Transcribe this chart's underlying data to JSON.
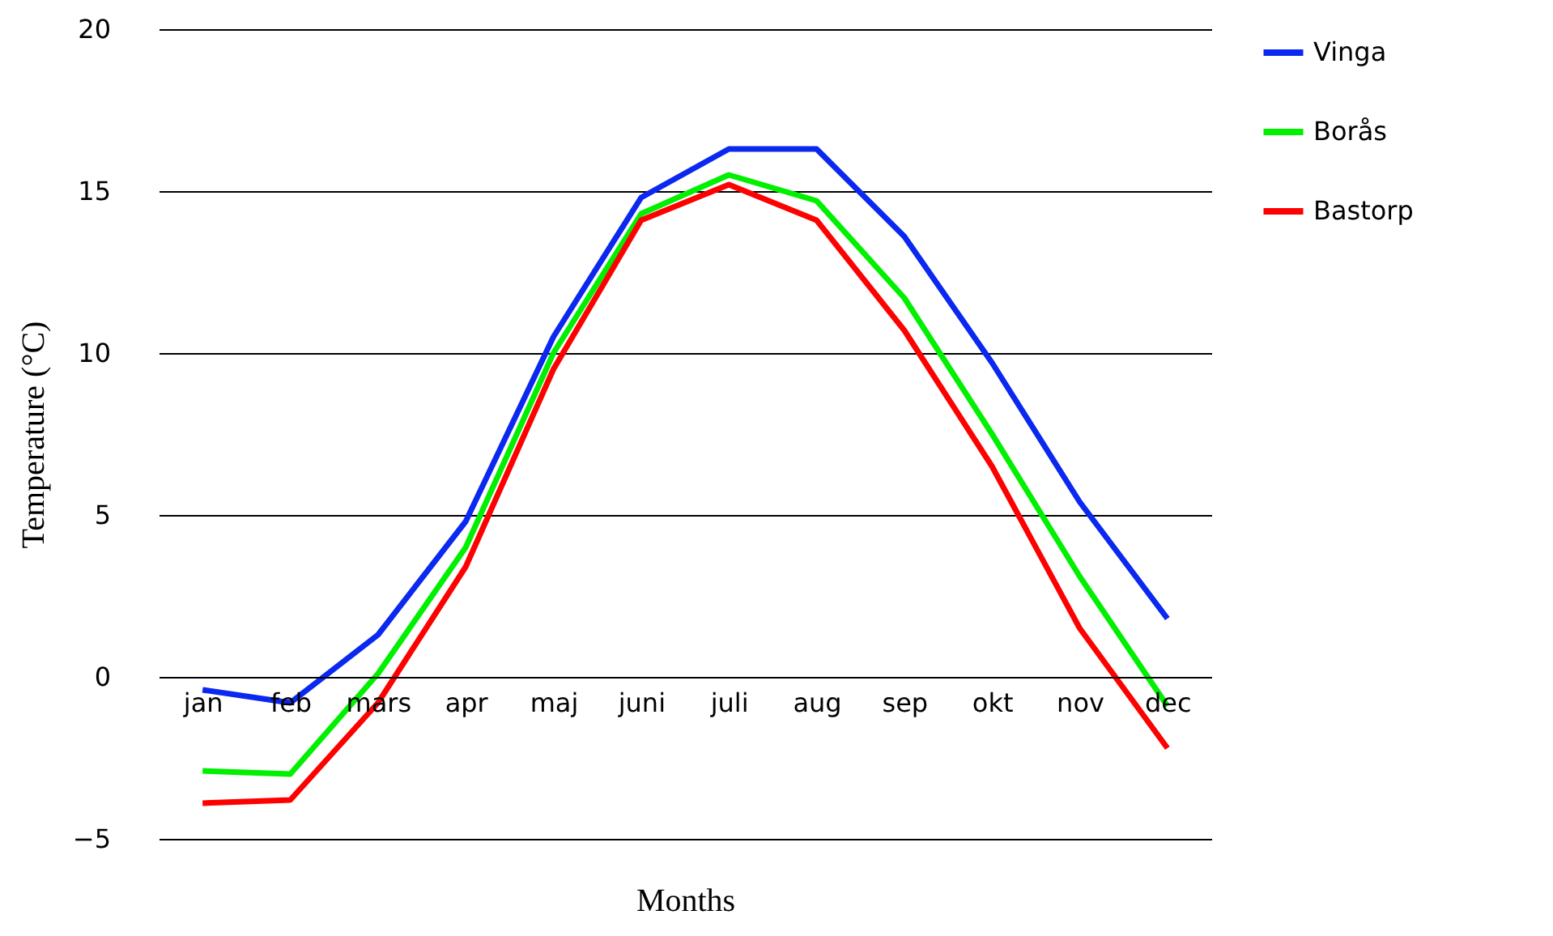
{
  "chart_data": {
    "type": "line",
    "xlabel": "Months",
    "ylabel": "Temperature (°C)",
    "categories": [
      "jan",
      "feb",
      "mars",
      "apr",
      "maj",
      "juni",
      "juli",
      "aug",
      "sep",
      "okt",
      "nov",
      "dec"
    ],
    "series": [
      {
        "name": "Vinga",
        "color": "#0a28f0",
        "values": [
          -0.4,
          -0.8,
          1.3,
          4.8,
          10.5,
          14.8,
          16.3,
          16.3,
          13.6,
          9.7,
          5.4,
          1.8
        ]
      },
      {
        "name": "Borås",
        "color": "#00f000",
        "values": [
          -2.9,
          -3.0,
          0.1,
          4.0,
          10.0,
          14.3,
          15.5,
          14.7,
          11.7,
          7.5,
          3.1,
          -0.9
        ]
      },
      {
        "name": "Bastorp",
        "color": "#ff0000",
        "values": [
          -3.9,
          -3.8,
          -0.8,
          3.4,
          9.5,
          14.1,
          15.2,
          14.1,
          10.7,
          6.5,
          1.5,
          -2.2
        ]
      }
    ],
    "ylim": [
      -5,
      20
    ],
    "yticks": [
      -5,
      0,
      5,
      10,
      15,
      20
    ],
    "grid": "y",
    "legend": "right",
    "marker": "none",
    "line_style": "solid"
  }
}
